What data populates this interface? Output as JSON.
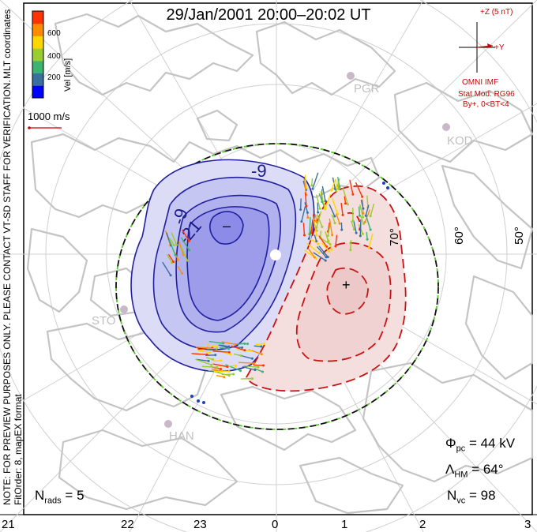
{
  "title": "29/Jan/2001  20:00–20:02  UT",
  "coordinate_label": "MLT coordinates",
  "colorbar": {
    "label": "Vel [m/s]",
    "ticks": [
      "600",
      "400",
      "200"
    ],
    "colors": [
      "#0000ff",
      "#3a6fa0",
      "#3cb371",
      "#9acd32",
      "#ffd700",
      "#ff8c00",
      "#ff3300"
    ]
  },
  "velocity_scale": "1000 m/s",
  "imf": {
    "z_label": "+Z (5 nT)",
    "y_label": "+Y",
    "source": "OMNI IMF",
    "model": "Stat Mod: RG96",
    "condition": "By+, 0<BT<4"
  },
  "note_line1": "NOTE: FOR PREVIEW PURPOSES ONLY. PLEASE CONTACT VT-SD STAFF FOR VERIFICATION.",
  "note_line2": "FitOrder: 8,  mapEX format",
  "mlt_labels": [
    "21",
    "22",
    "23",
    "0",
    "1",
    "2",
    "3"
  ],
  "mlat_labels": [
    "70°",
    "60°",
    "50°"
  ],
  "contour_labels": [
    "-9",
    "-9",
    "-21",
    "–",
    "+"
  ],
  "stations": [
    "PGR",
    "KOD",
    "STO",
    "HAN"
  ],
  "stats": {
    "nrads_label": "N",
    "nrads_sub": "rads",
    "nrads_value": "= 5",
    "phi_label": "Φ",
    "phi_sub": "pc",
    "phi_value": "= 44  kV",
    "lambda_label": "Λ",
    "lambda_sub": "HM",
    "lambda_value": "= 64°",
    "nvc_label": "N",
    "nvc_sub": "vc",
    "nvc_value": "= 98"
  },
  "colors": {
    "land": "#c8c8c8",
    "grid": "#d0d0d0",
    "negative_cell": "#1f1fbf",
    "positive_cell": "#cc1111",
    "boundary_dash_a": "#111111",
    "boundary_dash_b": "#55cc22",
    "imf_color": "#d00000"
  }
}
